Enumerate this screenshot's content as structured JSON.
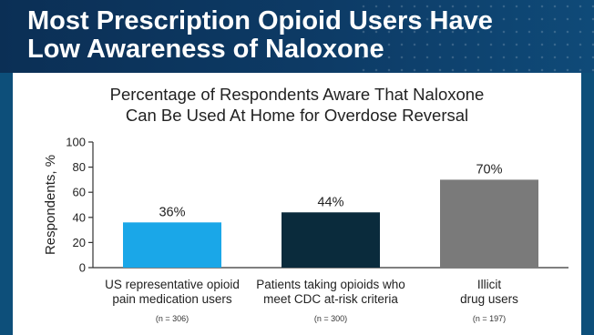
{
  "slide": {
    "title": "Most Prescription Opioid Users Have\nLow Awareness of Naloxone"
  },
  "chart_data": {
    "type": "bar",
    "title": "Percentage of Respondents Aware That Naloxone\nCan Be Used At Home for Overdose Reversal",
    "ylabel": "Respondents, %",
    "xlabel": "",
    "ylim": [
      0,
      100
    ],
    "yticks": [
      0,
      20,
      40,
      60,
      80,
      100
    ],
    "categories": [
      [
        "US representative opioid",
        "pain medication users"
      ],
      [
        "Patients taking opioids who",
        "meet CDC at-risk criteria"
      ],
      [
        "Illicit",
        "drug users"
      ]
    ],
    "sample_sizes": [
      "(n = 306)",
      "(n = 300)",
      "(n = 197)"
    ],
    "values": [
      36,
      44,
      70
    ],
    "value_labels": [
      "36%",
      "44%",
      "70%"
    ],
    "bar_colors": [
      "#1aa7e8",
      "#0a2b3c",
      "#7a7a7a"
    ],
    "grid": false
  }
}
